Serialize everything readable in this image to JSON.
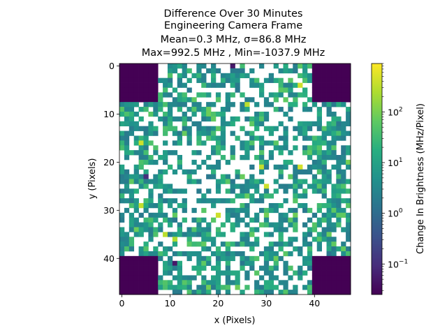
{
  "chart_data": {
    "type": "heatmap",
    "title_lines": [
      "Difference Over 30 Minutes",
      "Engineering Camera Frame",
      "Mean=0.3 MHz, σ=86.8 MHz",
      "Max=992.5 MHz , Min=-1037.9 MHz"
    ],
    "xlabel": "x (Pixels)",
    "ylabel": "y (Pixels)",
    "grid_size": [
      48,
      48
    ],
    "xlim": [
      -0.5,
      47.5
    ],
    "ylim": [
      47.5,
      -0.5
    ],
    "x_ticks": [
      0,
      10,
      20,
      30,
      40
    ],
    "y_ticks": [
      0,
      10,
      20,
      30,
      40
    ],
    "colormap": "viridis",
    "color_scale": "log",
    "color_range": [
      0.025,
      900
    ],
    "colorbar": {
      "label": "Change In Brightness (MHz/Pixel)",
      "ticks": [
        {
          "value": 0.1,
          "base": "10",
          "exp": "−1"
        },
        {
          "value": 1,
          "base": "10",
          "exp": "0"
        },
        {
          "value": 10,
          "base": "10",
          "exp": "1"
        },
        {
          "value": 100,
          "base": "10",
          "exp": "2"
        }
      ]
    },
    "masked_corner_blocks": [
      {
        "x": [
          0,
          7
        ],
        "y": [
          0,
          7
        ],
        "value": 0.025
      },
      {
        "x": [
          40,
          47
        ],
        "y": [
          0,
          7
        ],
        "value": 0.025
      },
      {
        "x": [
          0,
          7
        ],
        "y": [
          40,
          47
        ],
        "value": 0.025
      },
      {
        "x": [
          40,
          47
        ],
        "y": [
          40,
          47
        ],
        "value": 0.025
      }
    ],
    "sample_points": [
      {
        "x": 23,
        "y": 0,
        "value": 0.05
      },
      {
        "x": 11,
        "y": 41,
        "value": 0.05
      },
      {
        "x": 37,
        "y": 4,
        "value": 400
      },
      {
        "x": 26,
        "y": 8,
        "value": 300
      },
      {
        "x": 4,
        "y": 16,
        "value": 400
      },
      {
        "x": 29,
        "y": 21,
        "value": 350
      },
      {
        "x": 37,
        "y": 21,
        "value": 450
      },
      {
        "x": 30,
        "y": 25,
        "value": 400
      },
      {
        "x": 4,
        "y": 29,
        "value": 350
      },
      {
        "x": 20,
        "y": 31,
        "value": 400
      },
      {
        "x": 11,
        "y": 36,
        "value": 250
      },
      {
        "x": 9,
        "y": 35,
        "value": 300
      },
      {
        "x": 5,
        "y": 23,
        "value": 0.1
      }
    ]
  }
}
